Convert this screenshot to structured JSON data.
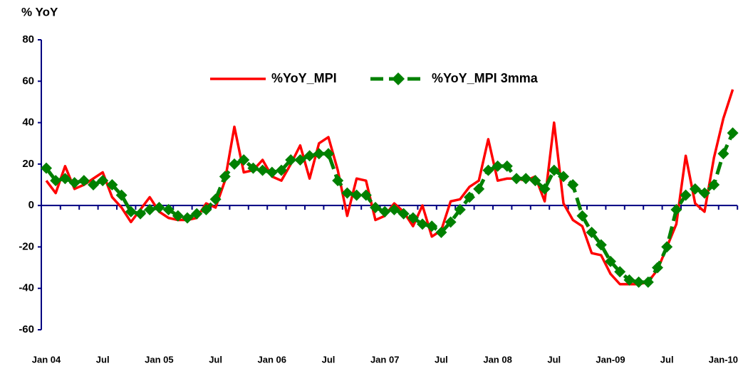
{
  "chart_data": {
    "type": "line",
    "y_label": "% YoY",
    "categories": [
      "Jan 04",
      null,
      null,
      null,
      null,
      null,
      "Jul",
      null,
      null,
      null,
      null,
      null,
      "Jan 05",
      null,
      null,
      null,
      null,
      null,
      "Jul",
      null,
      null,
      null,
      null,
      null,
      "Jan  06",
      null,
      null,
      null,
      null,
      null,
      "Jul",
      null,
      null,
      null,
      null,
      null,
      "Jan  07",
      null,
      null,
      null,
      null,
      null,
      "Jul",
      null,
      null,
      null,
      null,
      null,
      "Jan 08",
      null,
      null,
      null,
      null,
      null,
      "Jul",
      null,
      null,
      null,
      null,
      null,
      "Jan-09",
      null,
      null,
      null,
      null,
      null,
      "Jul",
      null,
      null,
      null,
      null,
      null,
      "Jan-10",
      null
    ],
    "series": [
      {
        "name": "%YoY_MPI",
        "color": "#ff0000",
        "style": "solid",
        "values": [
          12,
          6,
          19,
          8,
          10,
          13,
          16,
          4,
          -1,
          -8,
          -2,
          4,
          -3,
          -6,
          -7,
          -7,
          -6,
          1,
          -1,
          12,
          38,
          16,
          17,
          22,
          14,
          12,
          20,
          29,
          13,
          30,
          33,
          17,
          -5,
          13,
          12,
          -7,
          -5,
          1,
          -3,
          -10,
          0,
          -15,
          -12,
          2,
          3,
          9,
          12,
          32,
          12,
          13,
          13,
          12,
          14,
          2,
          40,
          1,
          -7,
          -10,
          -23,
          -24,
          -33,
          -38,
          -38,
          -38,
          -37,
          -31,
          -20,
          -9,
          24,
          1,
          -3,
          23,
          42,
          56
        ]
      },
      {
        "name": "%YoY_MPI 3mma",
        "color": "#008000",
        "style": "dashed",
        "marker": "diamond",
        "values": [
          18,
          12,
          13,
          11,
          12,
          10,
          12,
          10,
          5,
          -3,
          -4,
          -2,
          -1,
          -2,
          -5,
          -6,
          -4,
          -2,
          3,
          14,
          20,
          22,
          18,
          17,
          16,
          17,
          22,
          22,
          24,
          25,
          25,
          12,
          6,
          5,
          5,
          -1,
          -3,
          -2,
          -4,
          -6,
          -9,
          -10,
          -13,
          -8,
          -2,
          4,
          8,
          17,
          19,
          19,
          13,
          13,
          12,
          8,
          17,
          14,
          10,
          -5,
          -13,
          -19,
          -27,
          -32,
          -36,
          -37,
          -37,
          -30,
          -20,
          -2,
          5,
          8,
          6,
          10,
          25,
          35
        ]
      }
    ],
    "ylim": [
      -60,
      80
    ],
    "yticks": [
      -60,
      -40,
      -20,
      0,
      20,
      40,
      60,
      80
    ],
    "grid": false
  }
}
